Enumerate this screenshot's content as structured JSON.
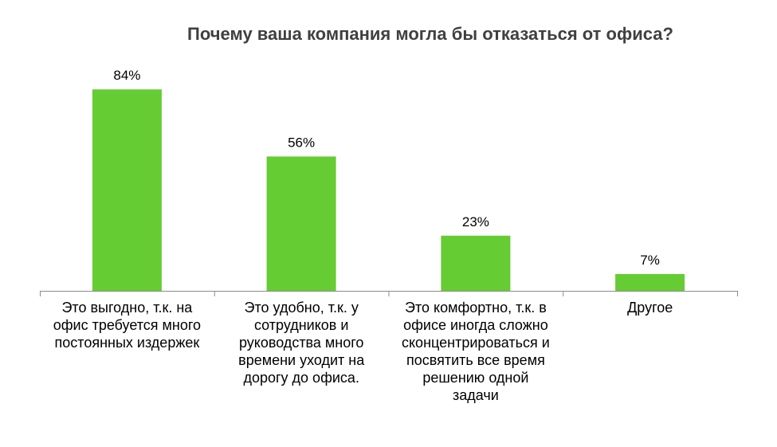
{
  "chart_data": {
    "type": "bar",
    "title": "Почему ваша компания могла бы отказаться от офиса?",
    "categories": [
      [
        "Это выгодно, т.к. на",
        "офис требуется много",
        "постоянных издержек"
      ],
      [
        "Это удобно, т.к. у",
        "сотрудников и",
        "руководства много",
        "времени уходит на",
        "дорогу до офиса."
      ],
      [
        "Это комфортно, т.к. в",
        "офисе иногда сложно",
        "сконцентрироваться и",
        "посвятить все время",
        "решению одной",
        "задачи"
      ],
      [
        "Другое"
      ]
    ],
    "values": [
      84,
      56,
      23,
      7
    ],
    "data_labels": [
      "84%",
      "56%",
      "23%",
      "7%"
    ],
    "unit": "%",
    "ylim": [
      0,
      100
    ],
    "grid": false,
    "legend": "none",
    "colors": {
      "bar": "#66CC33",
      "axis": "#8C8C8C",
      "title": "#404040",
      "text": "#000000"
    }
  }
}
